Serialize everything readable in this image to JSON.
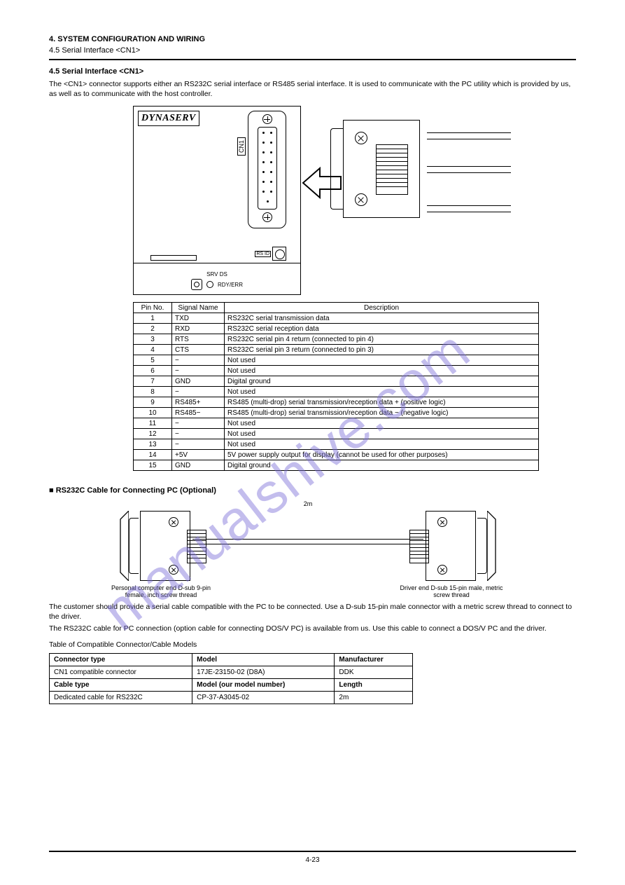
{
  "header": {
    "title": "4. SYSTEM CONFIGURATION AND WIRING",
    "subtitle": "4.5 Serial Interface <CN1>",
    "heading": "4.5 Serial Interface <CN1>"
  },
  "intro": "The <CN1> connector supports either an RS232C serial interface or RS485 serial interface. It is used to communicate with the PC utility which is provided by us, as well as to communicate with the host controller.",
  "dynaserv": {
    "logo": "DYNASERV",
    "cn1": "CN1",
    "rsid": "RS ID",
    "srv": "SRV DS",
    "rdy": "RDY/ERR"
  },
  "pin_table": {
    "headers": [
      "Pin No.",
      "Signal Name",
      "Description"
    ],
    "rows": [
      [
        "1",
        "TXD",
        "RS232C serial transmission data"
      ],
      [
        "2",
        "RXD",
        "RS232C serial reception data"
      ],
      [
        "3",
        "RTS",
        "RS232C serial pin 4 return (connected to pin 4)"
      ],
      [
        "4",
        "CTS",
        "RS232C serial pin 3 return (connected to pin 3)"
      ],
      [
        "5",
        "−",
        "Not used"
      ],
      [
        "6",
        "−",
        "Not used"
      ],
      [
        "7",
        "GND",
        "Digital ground"
      ],
      [
        "8",
        "−",
        "Not used"
      ],
      [
        "9",
        "RS485+",
        "RS485 (multi-drop) serial transmission/reception data + (positive logic)"
      ],
      [
        "10",
        "RS485−",
        "RS485 (multi-drop) serial transmission/reception data − (negative logic)"
      ],
      [
        "11",
        "−",
        "Not used"
      ],
      [
        "12",
        "−",
        "Not used"
      ],
      [
        "13",
        "−",
        "Not used"
      ],
      [
        "14",
        "+5V",
        "5V power supply output for display (cannot be used for other purposes)"
      ],
      [
        "15",
        "GND",
        "Digital ground"
      ]
    ]
  },
  "cable_section": {
    "title": "■ RS232C Cable for Connecting PC (Optional)",
    "left_label": "Personal computer end D-sub 9-pin female, inch screw thread",
    "right_label": "Driver end D-sub 15-pin male, metric screw thread",
    "len": "2m"
  },
  "paragraphs": {
    "p1": "The customer should provide a serial cable compatible with the PC to be connected. Use a D-sub 15-pin male connector with a metric screw thread to connect to the driver.",
    "p2": "The RS232C cable for PC connection (option cable for connecting DOS/V PC) is available from us. Use this cable to connect a DOS/V PC and the driver.",
    "p3_title": "Table of Compatible Connector/Cable Models",
    "connector_row": [
      "Connector type",
      "Model",
      "Manufacturer"
    ],
    "connector_data": [
      "CN1 compatible connector",
      "17JE-23150-02 (D8A)",
      "DDK"
    ],
    "cable_row": [
      "Cable type",
      "Model (our model number)",
      "Length"
    ],
    "cable_data": [
      "Dedicated cable for RS232C",
      "CP-37-A3045-02",
      "2m"
    ]
  },
  "page_number": "4-23",
  "watermark": "manualshive.com",
  "colors": {
    "text": "#000000",
    "background": "#ffffff",
    "watermark": "#7b6fd8"
  }
}
